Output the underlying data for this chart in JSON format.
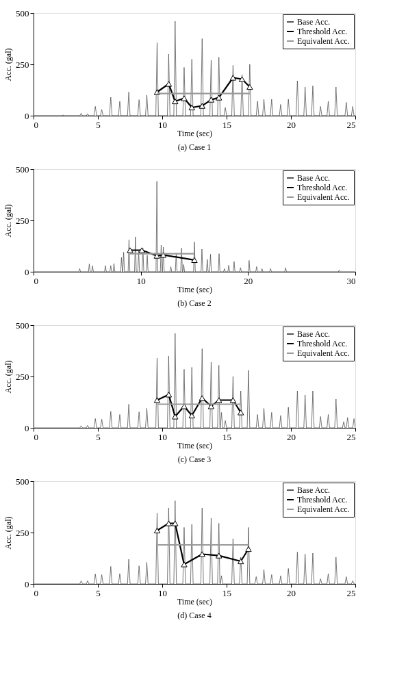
{
  "chart_data": [
    {
      "type": "line",
      "title": "(a)    Case 1",
      "xlabel": "Time (sec)",
      "ylabel": "Acc. (gal)",
      "xlim": [
        0,
        25
      ],
      "xticks": [
        0,
        5,
        10,
        15,
        20,
        25
      ],
      "ylim": [
        0,
        500
      ],
      "yticks": [
        0,
        250,
        500
      ],
      "legend": "top right",
      "grid": false,
      "series": [
        {
          "name": "Base Acc.",
          "color": "#555555",
          "x": [
            0,
            2.2,
            2.3,
            2.4,
            3.6,
            3.7,
            3.8,
            4.1,
            4.2,
            4.3,
            4.7,
            4.8,
            4.9,
            5.2,
            5.3,
            5.4,
            5.9,
            6.0,
            6.1,
            6.6,
            6.7,
            6.8,
            7.3,
            7.4,
            7.5,
            8.1,
            8.2,
            8.3,
            8.7,
            8.8,
            8.9,
            9.5,
            9.6,
            9.7,
            10.4,
            10.5,
            10.6,
            10.9,
            11.0,
            11.1,
            11.6,
            11.7,
            11.8,
            12.2,
            12.3,
            12.4,
            13.0,
            13.1,
            13.2,
            13.7,
            13.8,
            13.9,
            14.3,
            14.4,
            14.5,
            14.8,
            14.9,
            15.0,
            15.4,
            15.5,
            15.6,
            16.1,
            16.2,
            16.3,
            16.7,
            16.8,
            16.9,
            17.3,
            17.4,
            17.5,
            17.8,
            17.9,
            18.0,
            18.4,
            18.5,
            18.6,
            19.1,
            19.2,
            19.3,
            19.7,
            19.8,
            19.9,
            20.4,
            20.5,
            20.6,
            21.0,
            21.1,
            21.2,
            21.6,
            21.7,
            21.8,
            22.2,
            22.3,
            22.4,
            22.8,
            22.9,
            23.0,
            23.4,
            23.5,
            23.6,
            24.2,
            24.3,
            24.4,
            24.7,
            24.8,
            24.9,
            25
          ],
          "values": [
            0,
            0,
            3,
            0,
            0,
            12,
            0,
            0,
            10,
            0,
            0,
            45,
            0,
            0,
            30,
            0,
            0,
            90,
            0,
            0,
            70,
            0,
            0,
            115,
            0,
            0,
            78,
            0,
            0,
            100,
            0,
            0,
            355,
            0,
            0,
            300,
            0,
            0,
            460,
            0,
            0,
            235,
            0,
            0,
            275,
            0,
            0,
            375,
            0,
            0,
            270,
            0,
            0,
            285,
            0,
            0,
            40,
            0,
            0,
            245,
            0,
            0,
            200,
            0,
            0,
            250,
            0,
            0,
            70,
            0,
            0,
            80,
            0,
            0,
            80,
            0,
            0,
            55,
            0,
            0,
            80,
            0,
            0,
            170,
            0,
            0,
            140,
            0,
            0,
            145,
            0,
            0,
            45,
            0,
            0,
            70,
            0,
            0,
            140,
            0,
            0,
            65,
            0,
            0,
            45,
            0,
            0
          ]
        },
        {
          "name": "Threshold Acc.",
          "color": "#000000",
          "marker": "triangle",
          "x": [
            9.6,
            10.5,
            11.0,
            11.7,
            12.3,
            13.1,
            13.8,
            14.4,
            15.5,
            16.2,
            16.8
          ],
          "values": [
            115,
            155,
            70,
            85,
            40,
            48,
            78,
            88,
            185,
            178,
            140
          ]
        },
        {
          "name": "Equivalent Acc.",
          "color": "#999999",
          "x": [
            9.6,
            16.8
          ],
          "values": [
            108,
            108
          ]
        }
      ]
    },
    {
      "type": "line",
      "title": "(b)    Case 2",
      "xlabel": "Time (sec)",
      "ylabel": "Acc. (gal)",
      "xlim": [
        0,
        30
      ],
      "xticks": [
        0,
        10,
        20,
        30
      ],
      "ylim": [
        0,
        500
      ],
      "yticks": [
        0,
        250,
        500
      ],
      "legend": "top right",
      "grid": false,
      "series": [
        {
          "name": "Base Acc.",
          "color": "#555555",
          "x": [
            0,
            4.22,
            4.3,
            4.38,
            5.12,
            5.2,
            5.28,
            5.42,
            5.5,
            5.58,
            6.62,
            6.7,
            6.78,
            7.12,
            7.2,
            7.28,
            7.42,
            7.5,
            7.58,
            8.12,
            8.2,
            8.28,
            8.32,
            8.4,
            8.48,
            8.82,
            8.9,
            8.98,
            9.42,
            9.5,
            9.58,
            9.72,
            9.8,
            9.88,
            10.12,
            10.2,
            10.28,
            10.52,
            10.6,
            10.68,
            11.42,
            11.5,
            11.58,
            11.82,
            11.9,
            11.98,
            12.02,
            12.1,
            12.18,
            12.72,
            12.8,
            12.88,
            13.22,
            13.3,
            13.38,
            13.72,
            13.8,
            13.88,
            13.92,
            14.0,
            14.08,
            14.92,
            15.0,
            15.08,
            15.62,
            15.7,
            15.78,
            16.12,
            16.2,
            16.28,
            16.42,
            16.5,
            16.58,
            17.22,
            17.3,
            17.38,
            17.72,
            17.8,
            17.88,
            18.12,
            18.2,
            18.28,
            18.62,
            18.7,
            18.78,
            19.22,
            19.3,
            19.38,
            20.02,
            20.1,
            20.18,
            20.72,
            20.8,
            20.88,
            21.22,
            21.3,
            21.38,
            22.02,
            22.1,
            22.18,
            23.42,
            23.5,
            23.58,
            28.42,
            28.5,
            28.58,
            30
          ],
          "values": [
            0,
            0,
            15,
            0,
            0,
            38,
            0,
            0,
            28,
            0,
            0,
            30,
            0,
            0,
            30,
            0,
            0,
            40,
            0,
            0,
            70,
            0,
            0,
            95,
            0,
            0,
            155,
            0,
            0,
            170,
            0,
            0,
            100,
            0,
            0,
            115,
            0,
            0,
            80,
            0,
            0,
            440,
            0,
            0,
            130,
            0,
            0,
            120,
            0,
            0,
            25,
            0,
            0,
            90,
            0,
            0,
            115,
            0,
            0,
            35,
            0,
            0,
            145,
            0,
            0,
            110,
            0,
            0,
            60,
            0,
            0,
            85,
            0,
            0,
            88,
            0,
            0,
            15,
            0,
            0,
            32,
            0,
            0,
            50,
            0,
            0,
            20,
            0,
            0,
            55,
            0,
            0,
            25,
            0,
            0,
            15,
            0,
            0,
            15,
            0,
            0,
            20,
            0,
            0,
            8,
            0,
            0
          ]
        },
        {
          "name": "Threshold Acc.",
          "color": "#000000",
          "marker": "triangle",
          "x": [
            9.0,
            10.1,
            11.5,
            12.1,
            15.0
          ],
          "values": [
            105,
            105,
            78,
            82,
            57
          ]
        },
        {
          "name": "Equivalent Acc.",
          "color": "#999999",
          "x": [
            9.0,
            15.0
          ],
          "values": [
            88,
            88
          ]
        }
      ]
    },
    {
      "type": "line",
      "title": "(c)    Case 3",
      "xlabel": "Time (sec)",
      "ylabel": "Acc. (gal)",
      "xlim": [
        0,
        25
      ],
      "xticks": [
        0,
        5,
        10,
        15,
        20,
        25
      ],
      "ylim": [
        0,
        500
      ],
      "yticks": [
        0,
        250,
        500
      ],
      "legend": "top right",
      "grid": false,
      "series": [
        {
          "name": "Base Acc.",
          "color": "#555555",
          "x": [
            0,
            3.6,
            3.7,
            3.8,
            4.1,
            4.2,
            4.3,
            4.7,
            4.8,
            4.9,
            5.2,
            5.3,
            5.4,
            5.9,
            6.0,
            6.1,
            6.6,
            6.7,
            6.8,
            7.3,
            7.4,
            7.5,
            8.1,
            8.2,
            8.3,
            8.7,
            8.8,
            8.9,
            9.5,
            9.6,
            9.7,
            10.4,
            10.5,
            10.6,
            10.9,
            11.0,
            11.1,
            11.6,
            11.7,
            11.8,
            12.2,
            12.3,
            12.4,
            13.0,
            13.1,
            13.2,
            13.7,
            13.8,
            13.9,
            14.3,
            14.4,
            14.48,
            14.52,
            14.6,
            14.7,
            14.8,
            14.9,
            15.0,
            15.4,
            15.5,
            15.6,
            16.0,
            16.1,
            16.2,
            16.6,
            16.7,
            16.8,
            17.3,
            17.4,
            17.5,
            17.8,
            17.9,
            18.0,
            18.4,
            18.5,
            18.6,
            19.1,
            19.2,
            19.3,
            19.7,
            19.8,
            19.9,
            20.4,
            20.5,
            20.6,
            21.0,
            21.1,
            21.2,
            21.6,
            21.7,
            21.8,
            22.2,
            22.3,
            22.4,
            22.8,
            22.9,
            23.0,
            23.4,
            23.5,
            23.6,
            24.0,
            24.1,
            24.2,
            24.3,
            24.4,
            24.5,
            24.8,
            24.9,
            25.0
          ],
          "values": [
            0,
            0,
            10,
            0,
            0,
            12,
            0,
            0,
            45,
            0,
            0,
            42,
            0,
            0,
            80,
            0,
            0,
            65,
            0,
            0,
            115,
            0,
            0,
            78,
            0,
            0,
            95,
            0,
            0,
            340,
            0,
            0,
            350,
            0,
            0,
            460,
            0,
            0,
            285,
            0,
            0,
            295,
            0,
            0,
            385,
            0,
            0,
            320,
            0,
            0,
            305,
            0,
            0,
            75,
            0,
            0,
            35,
            0,
            0,
            250,
            0,
            0,
            180,
            0,
            0,
            280,
            0,
            0,
            65,
            0,
            0,
            95,
            0,
            0,
            75,
            0,
            0,
            60,
            0,
            0,
            100,
            0,
            0,
            180,
            0,
            0,
            160,
            0,
            0,
            180,
            0,
            0,
            55,
            0,
            0,
            65,
            0,
            0,
            140,
            0,
            0,
            30,
            0,
            0,
            50,
            0,
            0,
            45,
            0
          ]
        },
        {
          "name": "Threshold Acc.",
          "color": "#000000",
          "marker": "triangle",
          "x": [
            9.6,
            10.5,
            11.0,
            11.7,
            12.3,
            13.1,
            13.8,
            14.4,
            15.5,
            16.1
          ],
          "values": [
            135,
            162,
            55,
            105,
            60,
            145,
            105,
            135,
            135,
            75
          ]
        },
        {
          "name": "Equivalent Acc.",
          "color": "#999999",
          "x": [
            9.6,
            16.1
          ],
          "values": [
            115,
            115
          ]
        }
      ]
    },
    {
      "type": "line",
      "title": "(d)    Case 4",
      "xlabel": "Time (sec)",
      "ylabel": "Acc. (gal)",
      "xlim": [
        0,
        25
      ],
      "xticks": [
        0,
        5,
        10,
        15,
        20,
        25
      ],
      "ylim": [
        0,
        500
      ],
      "yticks": [
        0,
        250,
        500
      ],
      "legend": "top right",
      "grid": false,
      "series": [
        {
          "name": "Base Acc.",
          "color": "#555555",
          "x": [
            0,
            3.6,
            3.7,
            3.8,
            4.1,
            4.2,
            4.3,
            4.7,
            4.8,
            4.9,
            5.2,
            5.3,
            5.4,
            5.9,
            6.0,
            6.1,
            6.6,
            6.7,
            6.8,
            7.3,
            7.4,
            7.5,
            8.1,
            8.2,
            8.3,
            8.7,
            8.8,
            8.9,
            9.5,
            9.6,
            9.7,
            10.4,
            10.5,
            10.6,
            10.9,
            11.0,
            11.1,
            11.6,
            11.7,
            11.8,
            12.2,
            12.3,
            12.4,
            13.0,
            13.1,
            13.2,
            13.7,
            13.8,
            13.9,
            14.3,
            14.4,
            14.48,
            14.52,
            14.6,
            14.7,
            15.4,
            15.5,
            15.6,
            16.0,
            16.1,
            16.2,
            16.6,
            16.7,
            16.8,
            17.2,
            17.3,
            17.4,
            17.8,
            17.9,
            18.0,
            18.4,
            18.5,
            18.6,
            19.1,
            19.2,
            19.3,
            19.7,
            19.8,
            19.9,
            20.4,
            20.5,
            20.6,
            21.0,
            21.1,
            21.2,
            21.6,
            21.7,
            21.8,
            22.2,
            22.3,
            22.4,
            22.8,
            22.9,
            23.0,
            23.4,
            23.5,
            23.6,
            24.2,
            24.3,
            24.4,
            24.7,
            24.8,
            24.9,
            25
          ],
          "values": [
            0,
            0,
            15,
            0,
            0,
            15,
            0,
            0,
            48,
            0,
            0,
            45,
            0,
            0,
            85,
            0,
            0,
            50,
            0,
            0,
            120,
            0,
            0,
            88,
            0,
            0,
            105,
            0,
            0,
            345,
            0,
            0,
            370,
            0,
            0,
            405,
            0,
            0,
            275,
            0,
            0,
            290,
            0,
            0,
            370,
            0,
            0,
            320,
            0,
            0,
            295,
            0,
            0,
            40,
            0,
            0,
            220,
            0,
            0,
            130,
            0,
            0,
            275,
            0,
            0,
            35,
            0,
            0,
            70,
            0,
            0,
            45,
            0,
            0,
            40,
            0,
            0,
            75,
            0,
            0,
            155,
            0,
            0,
            145,
            0,
            0,
            150,
            0,
            0,
            25,
            0,
            0,
            50,
            0,
            0,
            130,
            0,
            0,
            35,
            0,
            0,
            15,
            0,
            0
          ]
        },
        {
          "name": "Threshold Acc.",
          "color": "#000000",
          "marker": "triangle",
          "x": [
            9.6,
            10.5,
            11.0,
            11.7,
            13.1,
            14.4,
            16.1,
            16.7
          ],
          "values": [
            260,
            295,
            295,
            95,
            145,
            138,
            110,
            170
          ]
        },
        {
          "name": "Equivalent Acc.",
          "color": "#999999",
          "x": [
            9.6,
            16.7
          ],
          "values": [
            190,
            190
          ]
        }
      ]
    }
  ]
}
